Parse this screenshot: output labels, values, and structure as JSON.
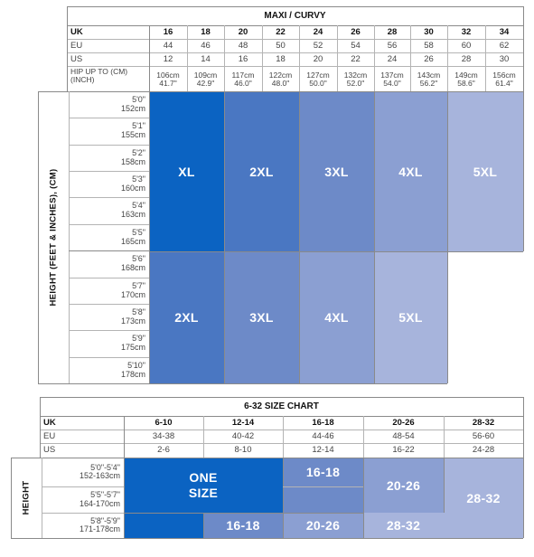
{
  "maxi": {
    "title": "MAXI / CURVY",
    "row_labels": {
      "uk": "UK",
      "eu": "EU",
      "us": "US",
      "hip_line1": "HIP UP TO (CM)",
      "hip_line2": "(INCH)"
    },
    "uk": [
      "16",
      "18",
      "20",
      "22",
      "24",
      "26",
      "28",
      "30",
      "32",
      "34"
    ],
    "eu": [
      "44",
      "46",
      "48",
      "50",
      "52",
      "54",
      "56",
      "58",
      "60",
      "62"
    ],
    "us": [
      "12",
      "14",
      "16",
      "18",
      "20",
      "22",
      "24",
      "26",
      "28",
      "30"
    ],
    "hip_cm": [
      "106cm",
      "109cm",
      "117cm",
      "122cm",
      "127cm",
      "132cm",
      "137cm",
      "143cm",
      "149cm",
      "156cm"
    ],
    "hip_in": [
      "41.7\"",
      "42.9\"",
      "46.0\"",
      "48.0\"",
      "50.0\"",
      "52.0\"",
      "54.0\"",
      "56.2\"",
      "58.6\"",
      "61.4\""
    ],
    "height_axis": "HEIGHT (FEET & INCHES), (CM)",
    "heights": [
      {
        "ft": "5'0\"",
        "cm": "152cm"
      },
      {
        "ft": "5'1\"",
        "cm": "155cm"
      },
      {
        "ft": "5'2\"",
        "cm": "158cm"
      },
      {
        "ft": "5'3\"",
        "cm": "160cm"
      },
      {
        "ft": "5'4\"",
        "cm": "163cm"
      },
      {
        "ft": "5'5\"",
        "cm": "165cm"
      },
      {
        "ft": "5'6\"",
        "cm": "168cm"
      },
      {
        "ft": "5'7\"",
        "cm": "170cm"
      },
      {
        "ft": "5'8\"",
        "cm": "173cm"
      },
      {
        "ft": "5'9\"",
        "cm": "175cm"
      },
      {
        "ft": "5'10\"",
        "cm": "178cm"
      }
    ],
    "top_sizes": [
      "XL",
      "2XL",
      "3XL",
      "4XL",
      "5XL"
    ],
    "bottom_sizes": [
      "2XL",
      "3XL",
      "4XL",
      "5XL"
    ]
  },
  "chart632": {
    "title": "6-32 SIZE CHART",
    "row_labels": {
      "uk": "UK",
      "eu": "EU",
      "us": "US"
    },
    "uk": [
      "6-10",
      "12-14",
      "16-18",
      "20-26",
      "28-32"
    ],
    "eu": [
      "34-38",
      "40-42",
      "44-46",
      "48-54",
      "56-60"
    ],
    "us": [
      "2-6",
      "8-10",
      "12-14",
      "16-22",
      "24-28"
    ],
    "height_axis": "HEIGHT",
    "heights": [
      {
        "ft": "5'0\"-5'4\"",
        "cm": "152-163cm"
      },
      {
        "ft": "5'5\"-5'7\"",
        "cm": "164-170cm"
      },
      {
        "ft": "5'8\"-5'9\"",
        "cm": "171-178cm"
      }
    ],
    "one_size_line1": "ONE",
    "one_size_line2": "SIZE",
    "blocks": {
      "b1618_top": "16-18",
      "b2026_top": "20-26",
      "b2832_right": "28-32",
      "b1618_bottom": "16-18",
      "b2026_bottom": "20-26",
      "b2832_bottom": "28-32"
    }
  },
  "colors": {
    "c1": "#0b63c2",
    "c2": "#4a77c2",
    "c3": "#6d8ac8",
    "c4": "#8b9fd2",
    "c5": "#a7b4dc"
  }
}
